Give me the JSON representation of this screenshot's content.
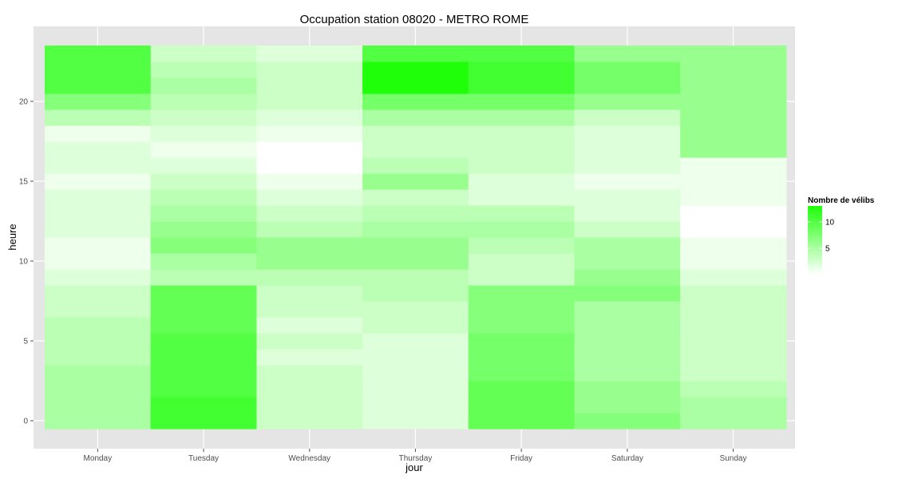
{
  "chart_data": {
    "type": "heatmap",
    "title": "Occupation station 08020 - METRO ROME",
    "xlabel": "jour",
    "ylabel": "heure",
    "categories": [
      "Monday",
      "Tuesday",
      "Wednesday",
      "Thursday",
      "Friday",
      "Saturday",
      "Sunday"
    ],
    "y_ticks": [
      0,
      5,
      10,
      15,
      20
    ],
    "ylim": [
      -0.5,
      23.5
    ],
    "grid": true,
    "legend": {
      "title": "Nombre de vélibs",
      "ticks": [
        5,
        10
      ],
      "min": 0,
      "max": 13,
      "low_color": "#ffffff",
      "high_color": "#1fff0a",
      "placement": "right"
    },
    "values": {
      "Monday": [
        5,
        5,
        5,
        5,
        4,
        4,
        4,
        3,
        3,
        2,
        1,
        1,
        2,
        2,
        2,
        1,
        2,
        2,
        1,
        4,
        7,
        10,
        10,
        10
      ],
      "Tuesday": [
        11,
        11,
        10,
        10,
        10,
        10,
        9,
        9,
        9,
        4,
        5,
        7,
        6,
        5,
        4,
        3,
        2,
        1,
        2,
        3,
        4,
        5,
        4,
        3
      ],
      "Wednesday": [
        3,
        3,
        3,
        3,
        2,
        3,
        2,
        3,
        3,
        4,
        6,
        6,
        4,
        3,
        2,
        1,
        0,
        0,
        1,
        2,
        3,
        3,
        3,
        2
      ],
      "Thursday": [
        2,
        2,
        2,
        2,
        2,
        2,
        3,
        3,
        4,
        4,
        6,
        6,
        5,
        4,
        3,
        6,
        4,
        3,
        3,
        5,
        8,
        13,
        13,
        10
      ],
      "Friday": [
        9,
        9,
        9,
        8,
        8,
        8,
        7,
        7,
        7,
        3,
        3,
        4,
        5,
        4,
        2,
        2,
        3,
        3,
        3,
        5,
        8,
        11,
        11,
        10
      ],
      "Saturday": [
        7,
        6,
        6,
        5,
        5,
        5,
        5,
        5,
        7,
        6,
        5,
        5,
        3,
        2,
        2,
        1,
        2,
        2,
        2,
        3,
        6,
        8,
        8,
        6
      ],
      "Sunday": [
        5,
        5,
        4,
        3,
        3,
        3,
        3,
        3,
        3,
        2,
        1,
        1,
        0,
        0,
        1,
        1,
        1,
        6,
        6,
        6,
        6,
        6,
        6,
        6
      ]
    }
  }
}
